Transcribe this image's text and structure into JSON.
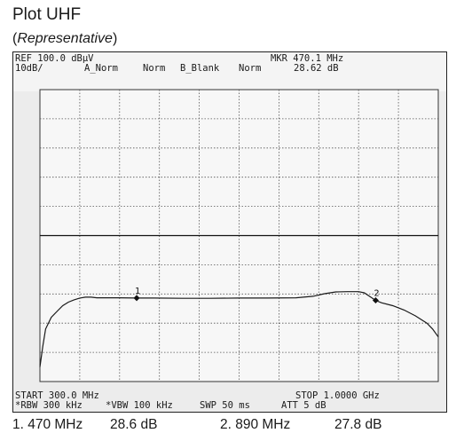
{
  "header": {
    "title": "Plot UHF",
    "subtitle_open": "(",
    "subtitle_italic": "Representative",
    "subtitle_close": ")"
  },
  "analyzer": {
    "ref_level": "REF 100.0 dBµV",
    "scale": "10dB/",
    "trace_a": "A_Norm",
    "norm1": "Norm",
    "trace_b": "B_Blank",
    "norm2": "Norm",
    "marker_freq": "MKR 470.1 MHz",
    "marker_level": "28.62 dB",
    "start": "START 300.0 MHz",
    "stop": "STOP 1.0000 GHz",
    "rbw": "*RBW 300 kHz",
    "vbw": "*VBW 100 kHz",
    "swp": "SWP 50 ms",
    "att": "ATT 5 dB"
  },
  "marker_readout": {
    "m1_freq": "1. 470 MHz",
    "m1_level": "28.6 dB",
    "m2_freq": "2. 890 MHz",
    "m2_level": "27.8 dB"
  },
  "colors": {
    "trace": "#1a1a1a",
    "grid": "#555555",
    "background": "#ececec"
  },
  "chart_data": {
    "type": "line",
    "xlim": [
      300,
      1000
    ],
    "ylim": [
      0,
      100
    ],
    "x_unit": "MHz",
    "y_unit": "dB",
    "grid": true,
    "reference_line_level": 50,
    "series": [
      {
        "x": [
          300,
          305,
          310,
          320,
          330,
          340,
          350,
          360,
          370,
          380,
          390,
          400,
          420,
          440,
          470,
          500,
          550,
          600,
          650,
          700,
          750,
          780,
          800,
          820,
          840,
          860,
          870,
          880,
          890,
          900,
          920,
          940,
          960,
          980,
          990,
          1000
        ],
        "y": [
          5,
          12,
          18,
          22,
          24,
          26,
          27.2,
          28,
          28.6,
          28.9,
          28.9,
          28.7,
          28.7,
          28.7,
          28.6,
          28.6,
          28.5,
          28.5,
          28.6,
          28.6,
          28.7,
          29.2,
          30.1,
          30.7,
          30.8,
          30.8,
          30.4,
          29.1,
          27.8,
          27.0,
          26.0,
          24.5,
          22.5,
          20.0,
          18.0,
          15.3
        ]
      }
    ],
    "markers": [
      {
        "label": "1",
        "x": 470,
        "y": 28.6
      },
      {
        "label": "2",
        "x": 890,
        "y": 27.8
      }
    ]
  }
}
